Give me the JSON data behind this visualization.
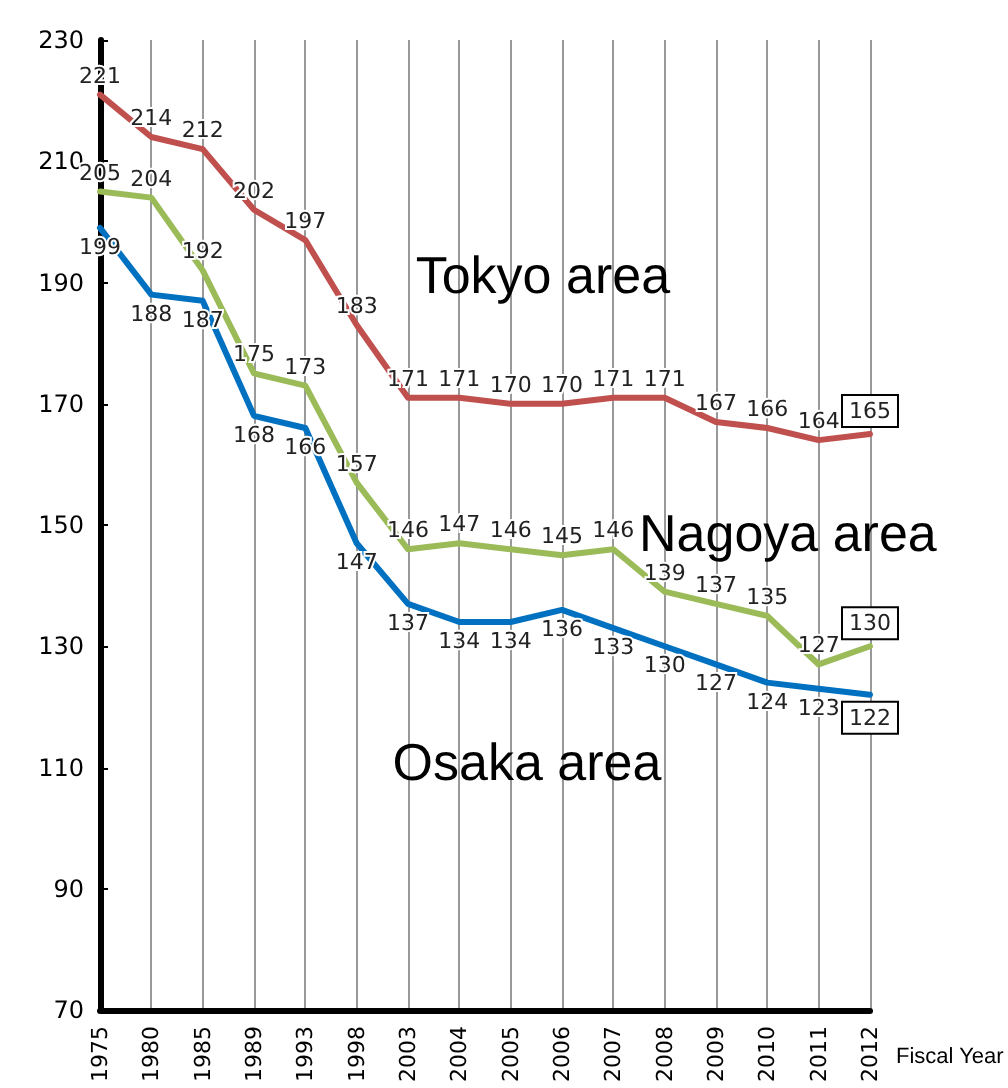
{
  "chart_data": {
    "type": "line",
    "xlabel": "Fiscal Year",
    "categories": [
      "1975",
      "1980",
      "1985",
      "1989",
      "1993",
      "1998",
      "2003",
      "2004",
      "2005",
      "2006",
      "2007",
      "2008",
      "2009",
      "2010",
      "2011",
      "2012"
    ],
    "series": [
      {
        "name": "Tokyo area",
        "color": "#c0504d",
        "values": [
          221,
          214,
          212,
          202,
          197,
          183,
          171,
          171,
          170,
          170,
          171,
          171,
          167,
          166,
          164,
          165
        ]
      },
      {
        "name": "Nagoya area",
        "color": "#9bbb59",
        "values": [
          205,
          204,
          192,
          175,
          173,
          157,
          146,
          147,
          146,
          145,
          146,
          139,
          137,
          135,
          127,
          130
        ]
      },
      {
        "name": "Osaka area",
        "color": "#0070c0",
        "values": [
          199,
          188,
          187,
          168,
          166,
          147,
          137,
          134,
          134,
          136,
          133,
          130,
          127,
          124,
          123,
          122
        ]
      }
    ],
    "ylim": [
      70,
      230
    ],
    "yticks": [
      70,
      90,
      110,
      130,
      150,
      170,
      190,
      210,
      230
    ],
    "grid": "x",
    "legend": false,
    "marker": "none",
    "line_style": "solid",
    "data_labels": true
  }
}
